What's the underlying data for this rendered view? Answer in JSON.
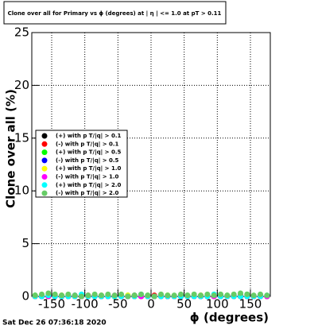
{
  "chart_data": {
    "type": "scatter",
    "title": "Clone  over all for Primary vs ϕ (degrees) at | η | <= 1.0 at pT > 0.11",
    "x_label": "ϕ (degrees)",
    "y_label": "Clone  over all (%)",
    "timestamp": "Sat Dec 26 07:36:18 2020",
    "xlim": [
      -180,
      180
    ],
    "ylim": [
      0,
      25
    ],
    "xticks": [
      -150,
      -100,
      -50,
      0,
      50,
      100,
      150
    ],
    "yticks": [
      0,
      5,
      10,
      15,
      20,
      25
    ],
    "grid": true,
    "legend_position": "middle-left",
    "x": [
      -175,
      -165,
      -155,
      -145,
      -135,
      -125,
      -115,
      -105,
      -95,
      -85,
      -75,
      -65,
      -55,
      -45,
      -35,
      -25,
      -15,
      -5,
      5,
      15,
      25,
      35,
      45,
      55,
      65,
      75,
      85,
      95,
      105,
      115,
      125,
      135,
      145,
      155,
      165,
      175
    ],
    "series": [
      {
        "name": "(+) with p T/|q| > 0.1",
        "color": "#000000",
        "values": [
          0,
          0.1,
          0,
          0,
          0.1,
          0,
          0,
          0,
          0,
          0.1,
          0,
          0,
          0,
          0,
          0,
          0.1,
          0,
          0,
          0,
          0,
          0,
          0,
          0.1,
          0,
          0,
          0,
          0,
          0,
          0.1,
          0,
          0,
          0,
          0,
          0,
          0,
          0
        ]
      },
      {
        "name": "(-) with p T/|q| > 0.1",
        "color": "#ff0000",
        "values": [
          0,
          0,
          0,
          0.1,
          0,
          0,
          0,
          0,
          0.1,
          0,
          0,
          0,
          0,
          0.1,
          0,
          0,
          0,
          0,
          0.1,
          0,
          0,
          0,
          0,
          0,
          0,
          0.1,
          0,
          0,
          0,
          0,
          0,
          0.1,
          0,
          0,
          0,
          0
        ]
      },
      {
        "name": "(+) with p T/|q| > 0.5",
        "color": "#00ff00",
        "values": [
          0.1,
          0,
          0.2,
          0,
          0,
          0.1,
          0,
          0.1,
          0,
          0,
          0,
          0.1,
          0,
          0,
          0.1,
          0,
          0,
          0.1,
          0,
          0,
          0.1,
          0,
          0,
          0.1,
          0,
          0,
          0.1,
          0,
          0,
          0.1,
          0,
          0,
          0.2,
          0,
          0.1,
          0
        ]
      },
      {
        "name": "(-) with p T/|q| > 0.5",
        "color": "#0000ff",
        "values": [
          0,
          0,
          0,
          0,
          0,
          0,
          0.1,
          0,
          0,
          0,
          0.1,
          0,
          0,
          0,
          0,
          0,
          0,
          0,
          0,
          0.1,
          0,
          0,
          0,
          0,
          0,
          0,
          0,
          0,
          0,
          0,
          0.1,
          0,
          0,
          0,
          0,
          0
        ]
      },
      {
        "name": "(+) with p T/|q| > 1.0",
        "color": "#ffff00",
        "values": [
          0,
          0.1,
          0,
          0,
          0.1,
          0,
          0,
          0,
          0,
          0,
          0.1,
          0,
          0,
          0,
          0.1,
          0,
          0,
          0,
          0,
          0,
          0.1,
          0,
          0,
          0,
          0,
          0.1,
          0,
          0,
          0,
          0,
          0,
          0,
          0.1,
          0,
          0,
          0
        ]
      },
      {
        "name": "(-) with p T/|q| > 1.0",
        "color": "#ff00ff",
        "values": [
          0,
          0,
          0,
          0,
          0,
          0,
          0,
          0,
          0,
          0,
          0,
          0,
          0.1,
          0,
          0,
          0,
          0,
          0,
          0,
          0,
          0,
          0,
          0,
          0,
          0,
          0,
          0,
          0,
          0,
          0,
          0,
          0,
          0,
          0,
          0,
          0
        ]
      },
      {
        "name": "(+) with p T/|q| > 2.0",
        "color": "#00ffff",
        "values": [
          0,
          0,
          0.1,
          0,
          0,
          0,
          0,
          0.2,
          0,
          0,
          0,
          0,
          0,
          0,
          0,
          0,
          0.2,
          0,
          0,
          0,
          0,
          0,
          0,
          0,
          0,
          0,
          0,
          0.2,
          0,
          0,
          0,
          0,
          0,
          0,
          0,
          0.1
        ]
      },
      {
        "name": "(-) with p T/|q| > 2.0",
        "color": "#66cc66",
        "values": [
          0.1,
          0.2,
          0.3,
          0.2,
          0.1,
          0.2,
          0.1,
          0,
          0.1,
          0.2,
          0.1,
          0.2,
          0.1,
          0.2,
          0,
          0.1,
          0.2,
          0.1,
          0,
          0.2,
          0.1,
          0.1,
          0.2,
          0.1,
          0.2,
          0.1,
          0.2,
          0.1,
          0.2,
          0.1,
          0.2,
          0.3,
          0.2,
          0.1,
          0.2,
          0.1
        ]
      }
    ]
  }
}
